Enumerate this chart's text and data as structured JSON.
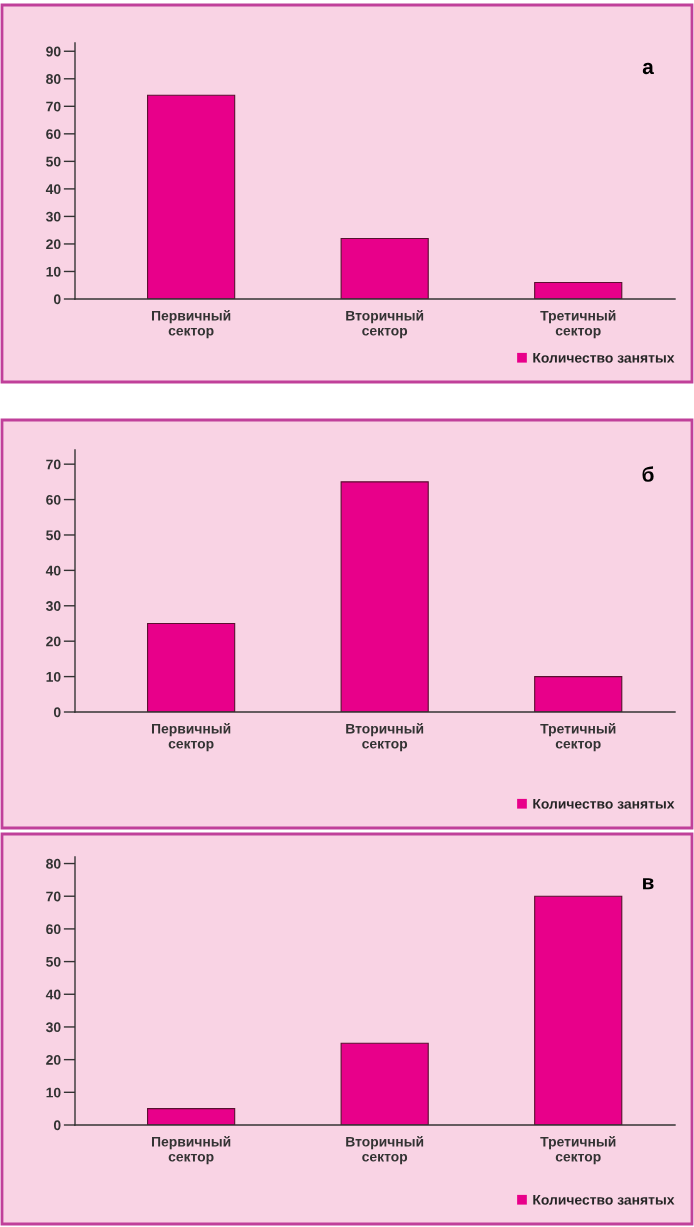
{
  "chart_data": [
    {
      "type": "bar",
      "categories": [
        "Первичный\nсектор",
        "Вторичный\nсектор",
        "Третичный\nсектор"
      ],
      "series": [
        {
          "name": "Количество занятых",
          "color": "#e8008a",
          "values": [
            74,
            22,
            6
          ]
        }
      ],
      "ylim": [
        0,
        93
      ],
      "yticks": [
        0,
        10,
        20,
        30,
        40,
        50,
        60,
        70,
        80,
        90
      ],
      "annotations": [
        "а"
      ],
      "legend": "bottom right",
      "grid": false
    },
    {
      "type": "bar",
      "categories": [
        "Первичный\nсектор",
        "Вторичный\nсектор",
        "Третичный\nсектор"
      ],
      "series": [
        {
          "name": "Количество занятых",
          "color": "#e8008a",
          "values": [
            25,
            65,
            10
          ]
        }
      ],
      "ylim": [
        0,
        74
      ],
      "yticks": [
        0,
        10,
        20,
        30,
        40,
        50,
        60,
        70
      ],
      "annotations": [
        "б"
      ],
      "legend": "bottom right",
      "grid": false
    },
    {
      "type": "bar",
      "categories": [
        "Первичный\nсектор",
        "Вторичный\nсектор",
        "Третичный\nсектор"
      ],
      "series": [
        {
          "name": "Количество занятых",
          "color": "#e8008a",
          "values": [
            5,
            25,
            70
          ]
        }
      ],
      "ylim": [
        0,
        82
      ],
      "yticks": [
        0,
        10,
        20,
        30,
        40,
        50,
        60,
        70,
        80
      ],
      "annotations": [
        "в"
      ],
      "legend": "bottom right",
      "grid": false
    }
  ]
}
